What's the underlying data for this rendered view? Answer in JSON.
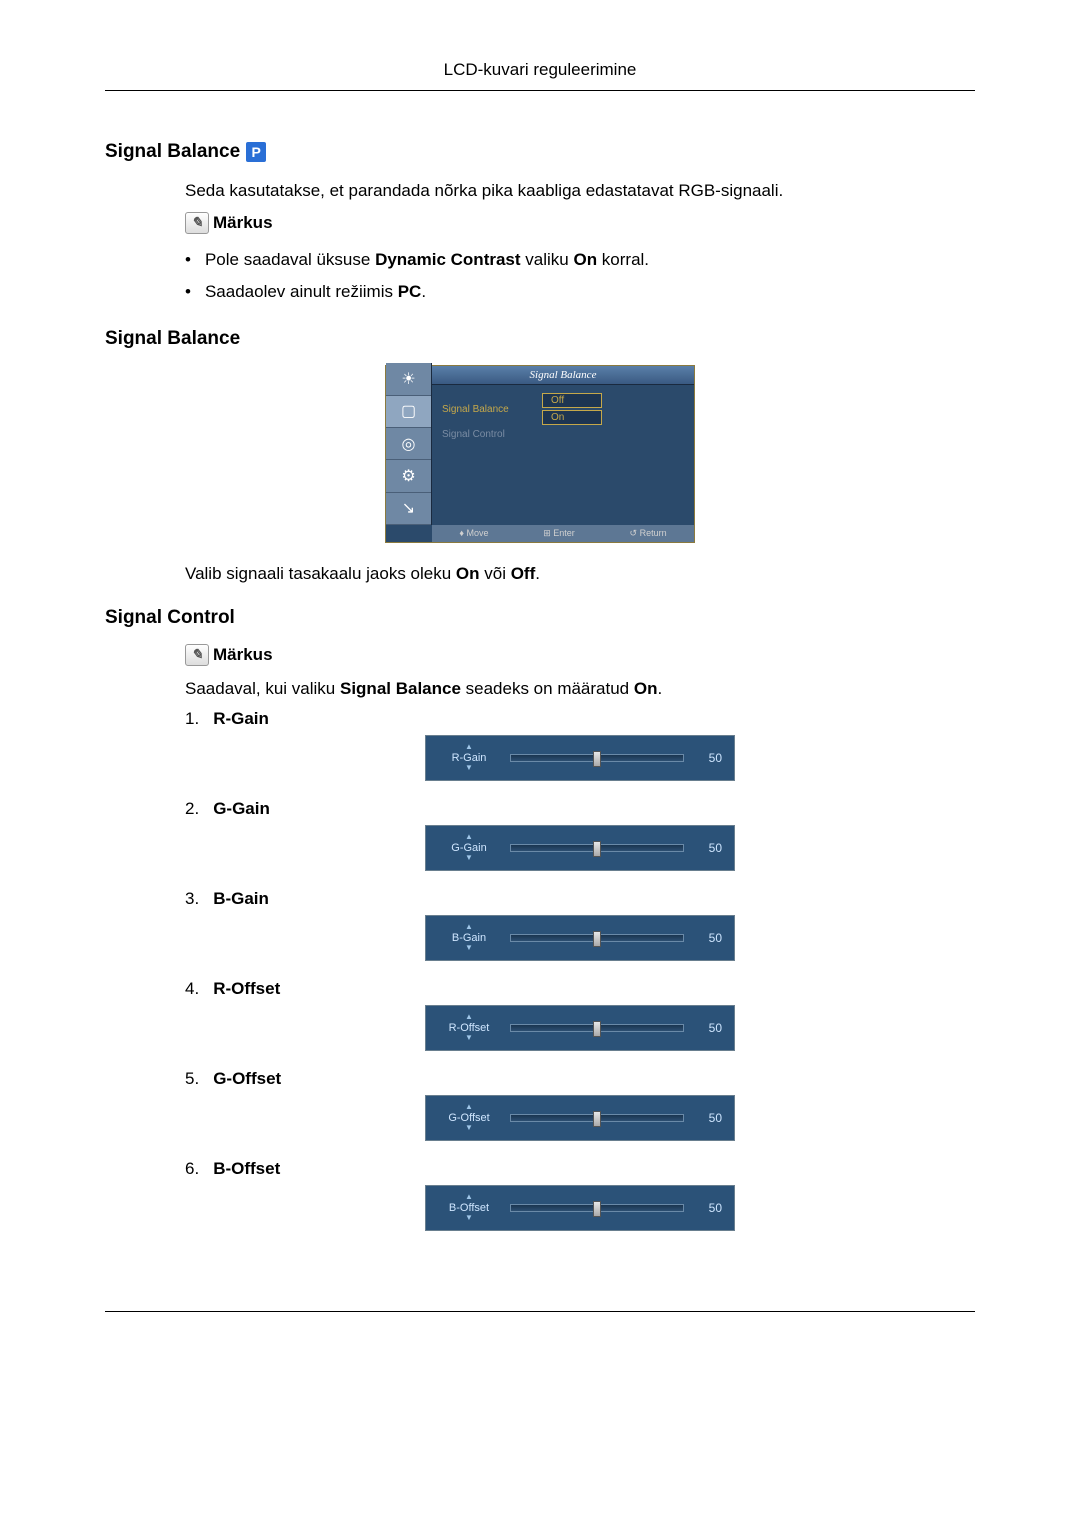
{
  "header": {
    "title": "LCD-kuvari reguleerimine"
  },
  "section1": {
    "heading": "Signal Balance",
    "intro": "Seda kasutatakse, et parandada nõrka pika kaabliga edastatavat RGB-signaali.",
    "note_label": "Märkus",
    "bullets": [
      {
        "pre": "Pole saadaval üksuse ",
        "b1": "Dynamic Contrast",
        "mid": " valiku ",
        "b2": "On",
        "post": " korral."
      },
      {
        "pre": "Saadaolev ainult režiimis ",
        "b1": "PC",
        "mid": "",
        "b2": "",
        "post": "."
      }
    ]
  },
  "section2": {
    "heading": "Signal Balance",
    "osd": {
      "title": "Signal Balance",
      "rows": [
        {
          "label": "Signal Balance",
          "dim": false
        },
        {
          "label": "Signal Control",
          "dim": true
        }
      ],
      "opt_off": "Off",
      "opt_on": "On",
      "footer": {
        "move": "Move",
        "enter": "Enter",
        "return": "Return"
      },
      "tab_icons": [
        "☀",
        "▢",
        "◎",
        "⚙",
        "↘"
      ]
    },
    "caption_pre": "Valib signaali tasakaalu jaoks oleku ",
    "caption_b1": "On",
    "caption_mid": " või ",
    "caption_b2": "Off",
    "caption_post": "."
  },
  "section3": {
    "heading": "Signal Control",
    "note_label": "Märkus",
    "avail_pre": "Saadaval, kui valiku ",
    "avail_b1": "Signal Balance",
    "avail_mid": " seadeks on määratud ",
    "avail_b2": "On",
    "avail_post": ".",
    "controls": [
      {
        "num": "1.",
        "name": "R-Gain",
        "slider_label": "R-Gain",
        "value": 50,
        "max": 100
      },
      {
        "num": "2.",
        "name": "G-Gain",
        "slider_label": "G-Gain",
        "value": 50,
        "max": 100
      },
      {
        "num": "3.",
        "name": "B-Gain",
        "slider_label": "B-Gain",
        "value": 50,
        "max": 100
      },
      {
        "num": "4.",
        "name": "R-Offset",
        "slider_label": "R-Offset",
        "value": 50,
        "max": 100
      },
      {
        "num": "5.",
        "name": "G-Offset",
        "slider_label": "G-Offset",
        "value": 50,
        "max": 100
      },
      {
        "num": "6.",
        "name": "B-Offset",
        "slider_label": "B-Offset",
        "value": 50,
        "max": 100
      }
    ]
  },
  "colors": {
    "osd_bg": "#2b4a6b",
    "osd_accent": "#c5a84a",
    "slider_bg": "#2b5278"
  }
}
